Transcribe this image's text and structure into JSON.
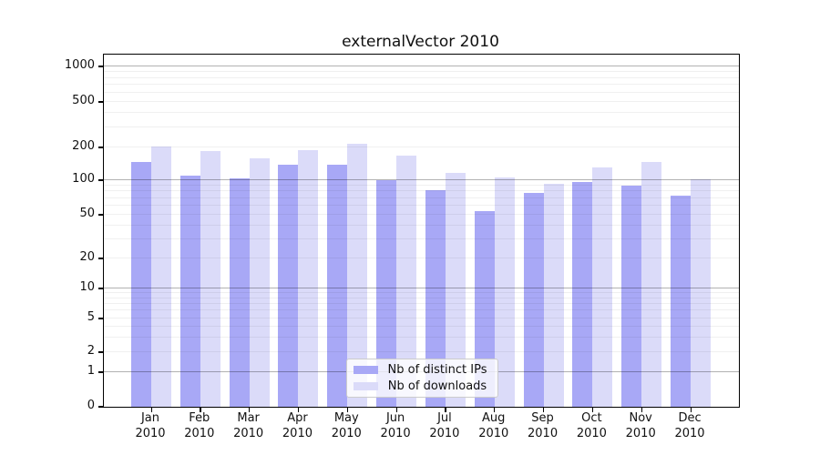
{
  "chart_data": {
    "type": "bar",
    "title": "externalVector 2010",
    "categories": [
      "Jan",
      "Feb",
      "Mar",
      "Apr",
      "May",
      "Jun",
      "Jul",
      "Aug",
      "Sep",
      "Oct",
      "Nov",
      "Dec"
    ],
    "category_year_label": "2010",
    "series": [
      {
        "name": "Nb of distinct IPs",
        "color": "#a8a8f6",
        "values": [
          148,
          110,
          105,
          140,
          140,
          100,
          82,
          54,
          77,
          96,
          90,
          73
        ]
      },
      {
        "name": "Nb of downloads",
        "color": "#dbdbf9",
        "values": [
          204,
          186,
          160,
          188,
          214,
          168,
          117,
          106,
          93,
          130,
          148,
          102
        ]
      }
    ],
    "xlabel": "",
    "ylabel": "",
    "y_ticks": [
      0,
      1,
      2,
      5,
      10,
      20,
      50,
      100,
      200,
      500,
      1000
    ],
    "y_scale": "log",
    "ylim": [
      0,
      1200
    ],
    "grid": "horizontal, minor and major, drawn over bars",
    "legend_position": "bottom-center inside plot",
    "colors": {
      "bar_distinct_ips": "#a8a8f6",
      "bar_downloads": "#dbdbf9",
      "major_gridline": "#b3b3b3",
      "minor_gridline": "#ededed",
      "axis": "#000000",
      "background": "#ffffff"
    }
  }
}
